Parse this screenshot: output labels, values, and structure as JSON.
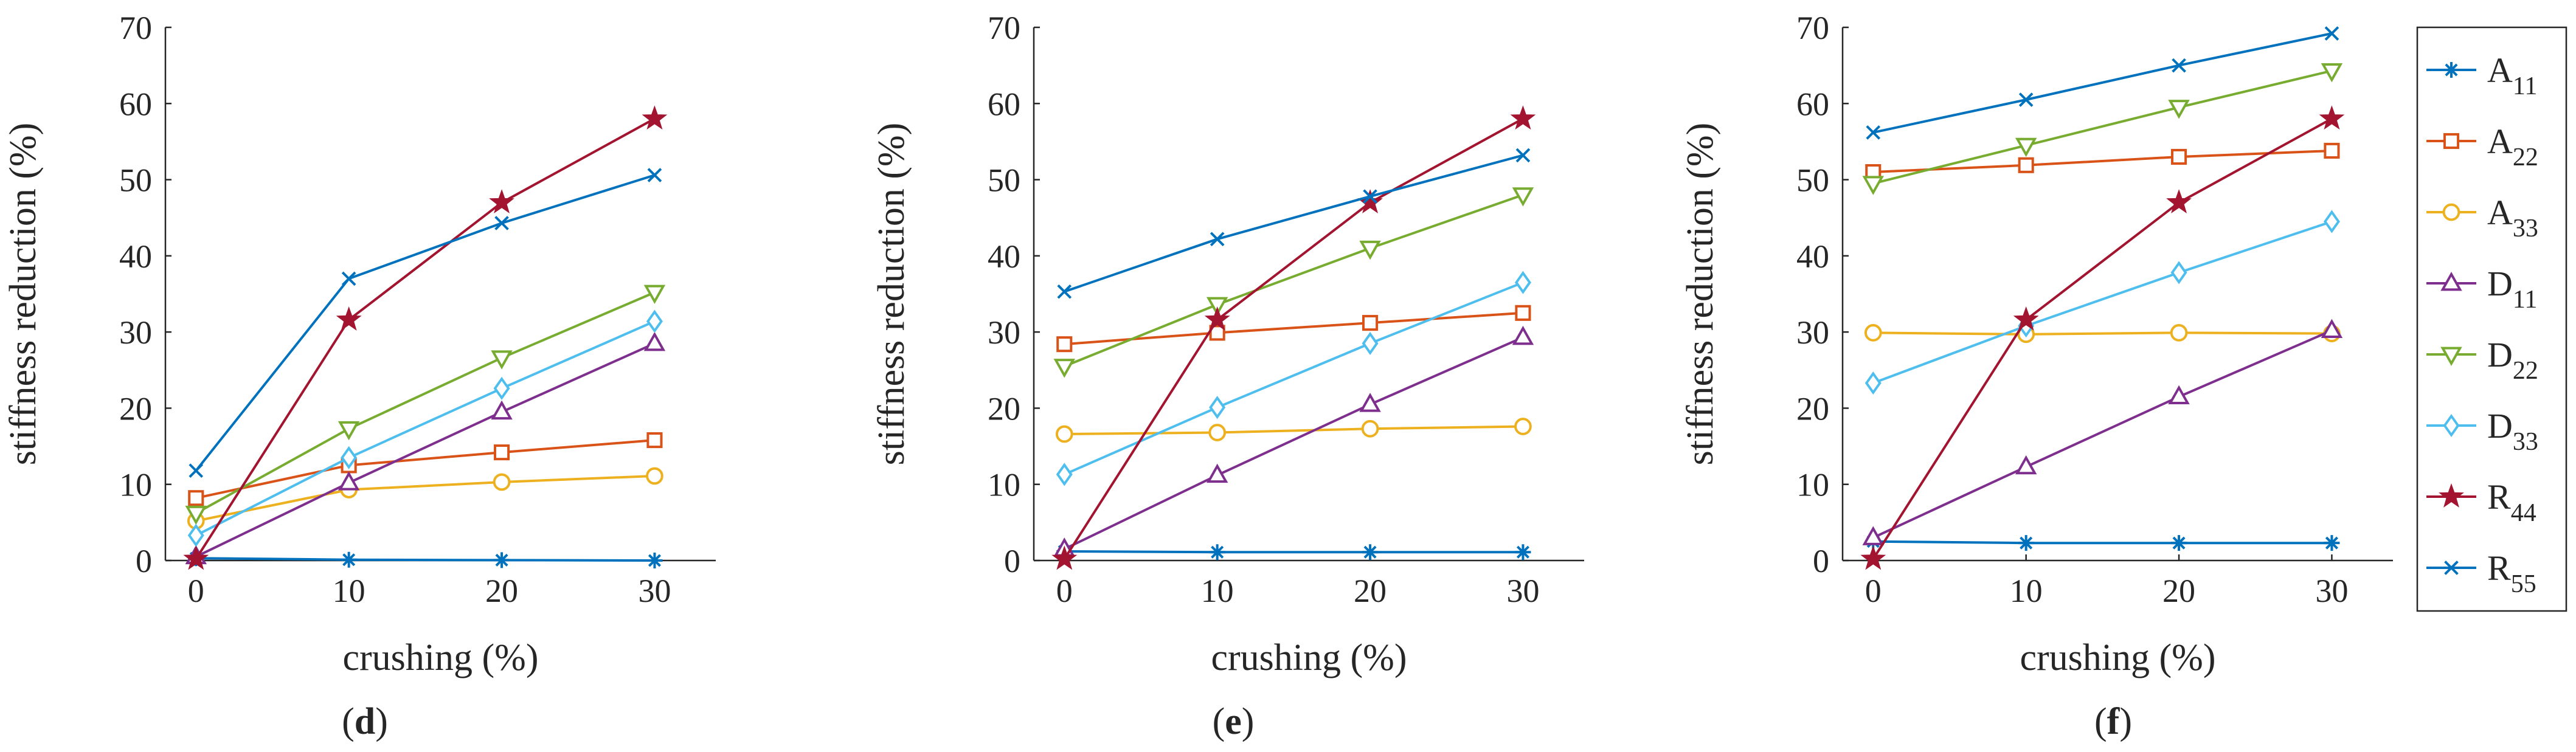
{
  "figure": {
    "colors": {
      "A11": "#0072BD",
      "A22": "#D95319",
      "A33": "#EDB120",
      "D11": "#7E2F8E",
      "D22": "#77AC30",
      "D33": "#4DBEEE",
      "R44": "#A2142F",
      "R55": "#0072BD"
    },
    "legend": {
      "placement": "right",
      "entries": [
        {
          "key": "A11",
          "main": "A",
          "sub": "11",
          "marker": "asterisk"
        },
        {
          "key": "A22",
          "main": "A",
          "sub": "22",
          "marker": "square"
        },
        {
          "key": "A33",
          "main": "A",
          "sub": "33",
          "marker": "circle"
        },
        {
          "key": "D11",
          "main": "D",
          "sub": "11",
          "marker": "triangle-up"
        },
        {
          "key": "D22",
          "main": "D",
          "sub": "22",
          "marker": "triangle-down"
        },
        {
          "key": "D33",
          "main": "D",
          "sub": "33",
          "marker": "diamond"
        },
        {
          "key": "R44",
          "main": "R",
          "sub": "44",
          "marker": "star"
        },
        {
          "key": "R55",
          "main": "R",
          "sub": "55",
          "marker": "x"
        }
      ]
    }
  },
  "chart_data": [
    {
      "type": "line",
      "panel_label": "d",
      "xlabel": "crushing (%)",
      "ylabel": "stiffness reduction (%)",
      "x": [
        0,
        10,
        20,
        30
      ],
      "xlim": [
        -2,
        34
      ],
      "ylim": [
        0,
        70
      ],
      "xticks": [
        0,
        10,
        20,
        30
      ],
      "yticks": [
        0,
        10,
        20,
        30,
        40,
        50,
        60,
        70
      ],
      "grid": false,
      "series": [
        {
          "key": "A11",
          "name": "A11",
          "values": [
            0.3,
            0.1,
            0.05,
            0.0
          ]
        },
        {
          "key": "A22",
          "name": "A22",
          "values": [
            8.2,
            12.5,
            14.2,
            15.8
          ]
        },
        {
          "key": "A33",
          "name": "A33",
          "values": [
            5.2,
            9.3,
            10.3,
            11.1
          ]
        },
        {
          "key": "D11",
          "name": "D11",
          "values": [
            0.5,
            10.2,
            19.5,
            28.5
          ]
        },
        {
          "key": "D22",
          "name": "D22",
          "values": [
            6.2,
            17.3,
            26.6,
            35.2
          ]
        },
        {
          "key": "D33",
          "name": "D33",
          "values": [
            3.3,
            13.5,
            22.6,
            31.4
          ]
        },
        {
          "key": "R44",
          "name": "R44",
          "values": [
            0.2,
            31.6,
            47.0,
            58.0
          ]
        },
        {
          "key": "R55",
          "name": "R55",
          "values": [
            11.8,
            37.0,
            44.3,
            50.6
          ]
        }
      ]
    },
    {
      "type": "line",
      "panel_label": "e",
      "xlabel": "crushing (%)",
      "ylabel": "stiffness reduction (%)",
      "x": [
        0,
        10,
        20,
        30
      ],
      "xlim": [
        -2,
        34
      ],
      "ylim": [
        0,
        70
      ],
      "xticks": [
        0,
        10,
        20,
        30
      ],
      "yticks": [
        0,
        10,
        20,
        30,
        40,
        50,
        60,
        70
      ],
      "grid": false,
      "series": [
        {
          "key": "A11",
          "name": "A11",
          "values": [
            1.2,
            1.1,
            1.1,
            1.1
          ]
        },
        {
          "key": "A22",
          "name": "A22",
          "values": [
            28.4,
            29.9,
            31.2,
            32.5
          ]
        },
        {
          "key": "A33",
          "name": "A33",
          "values": [
            16.6,
            16.8,
            17.3,
            17.6
          ]
        },
        {
          "key": "D11",
          "name": "D11",
          "values": [
            1.5,
            11.2,
            20.5,
            29.3
          ]
        },
        {
          "key": "D22",
          "name": "D22",
          "values": [
            25.5,
            33.6,
            41.0,
            48.0
          ]
        },
        {
          "key": "D33",
          "name": "D33",
          "values": [
            11.3,
            20.1,
            28.5,
            36.5
          ]
        },
        {
          "key": "R44",
          "name": "R44",
          "values": [
            0.2,
            31.6,
            47.0,
            58.0
          ]
        },
        {
          "key": "R55",
          "name": "R55",
          "values": [
            35.3,
            42.2,
            47.8,
            53.2
          ]
        }
      ]
    },
    {
      "type": "line",
      "panel_label": "f",
      "xlabel": "crushing (%)",
      "ylabel": "stiffness reduction (%)",
      "x": [
        0,
        10,
        20,
        30
      ],
      "xlim": [
        -2,
        34
      ],
      "ylim": [
        0,
        70
      ],
      "xticks": [
        0,
        10,
        20,
        30
      ],
      "yticks": [
        0,
        10,
        20,
        30,
        40,
        50,
        60,
        70
      ],
      "grid": false,
      "series": [
        {
          "key": "A11",
          "name": "A11",
          "values": [
            2.5,
            2.3,
            2.3,
            2.3
          ]
        },
        {
          "key": "A22",
          "name": "A22",
          "values": [
            51.0,
            51.9,
            53.0,
            53.8
          ]
        },
        {
          "key": "A33",
          "name": "A33",
          "values": [
            29.9,
            29.7,
            29.9,
            29.8
          ]
        },
        {
          "key": "D11",
          "name": "D11",
          "values": [
            3.0,
            12.3,
            21.5,
            30.2
          ]
        },
        {
          "key": "D22",
          "name": "D22",
          "values": [
            49.5,
            54.5,
            59.5,
            64.3
          ]
        },
        {
          "key": "D33",
          "name": "D33",
          "values": [
            23.3,
            30.8,
            37.8,
            44.5
          ]
        },
        {
          "key": "R44",
          "name": "R44",
          "values": [
            0.2,
            31.6,
            47.0,
            58.0
          ]
        },
        {
          "key": "R55",
          "name": "R55",
          "values": [
            56.2,
            60.5,
            65.0,
            69.2
          ]
        }
      ]
    }
  ]
}
